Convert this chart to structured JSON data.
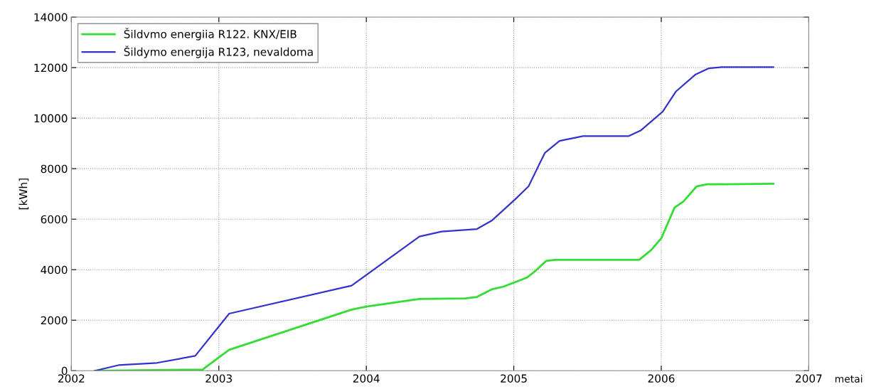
{
  "chart_data": {
    "type": "line",
    "xlabel": "metai",
    "ylabel": "[kWh]",
    "xlim": [
      2002,
      2007
    ],
    "xticks": [
      2002,
      2003,
      2004,
      2005,
      2006,
      2007
    ],
    "ylim": [
      0,
      14000
    ],
    "yticks": [
      0,
      2000,
      4000,
      6000,
      8000,
      10000,
      12000,
      14000
    ],
    "grid": true,
    "legend": "top left",
    "series": [
      {
        "name": "Šildvmo energiia R122. KNX/EIB",
        "color": "#33dd33",
        "x": [
          2002.16,
          2002.89,
          2003.07,
          2003.9,
          2004.0,
          2004.36,
          2004.67,
          2004.75,
          2004.85,
          2004.93,
          2005.09,
          2005.15,
          2005.22,
          2005.28,
          2005.85,
          2005.93,
          2006.0,
          2006.09,
          2006.15,
          2006.24,
          2006.31,
          2006.76
        ],
        "values": [
          0,
          50,
          830,
          2420,
          2540,
          2840,
          2860,
          2920,
          3220,
          3330,
          3690,
          3970,
          4350,
          4390,
          4390,
          4770,
          5240,
          6460,
          6700,
          7300,
          7380,
          7400
        ]
      },
      {
        "name": "Šildymo energija R123, nevaldoma",
        "color": "#3333cc",
        "x": [
          2002.16,
          2002.32,
          2002.58,
          2002.84,
          2003.07,
          2003.9,
          2004.36,
          2004.51,
          2004.75,
          2004.85,
          2005.01,
          2005.1,
          2005.21,
          2005.31,
          2005.47,
          2005.78,
          2005.86,
          2006.01,
          2006.1,
          2006.23,
          2006.32,
          2006.41,
          2006.76
        ],
        "values": [
          0,
          220,
          310,
          590,
          2260,
          3370,
          5310,
          5510,
          5610,
          5940,
          6790,
          7300,
          8620,
          9100,
          9290,
          9290,
          9510,
          10260,
          11060,
          11720,
          11970,
          12020,
          12020
        ]
      }
    ]
  }
}
